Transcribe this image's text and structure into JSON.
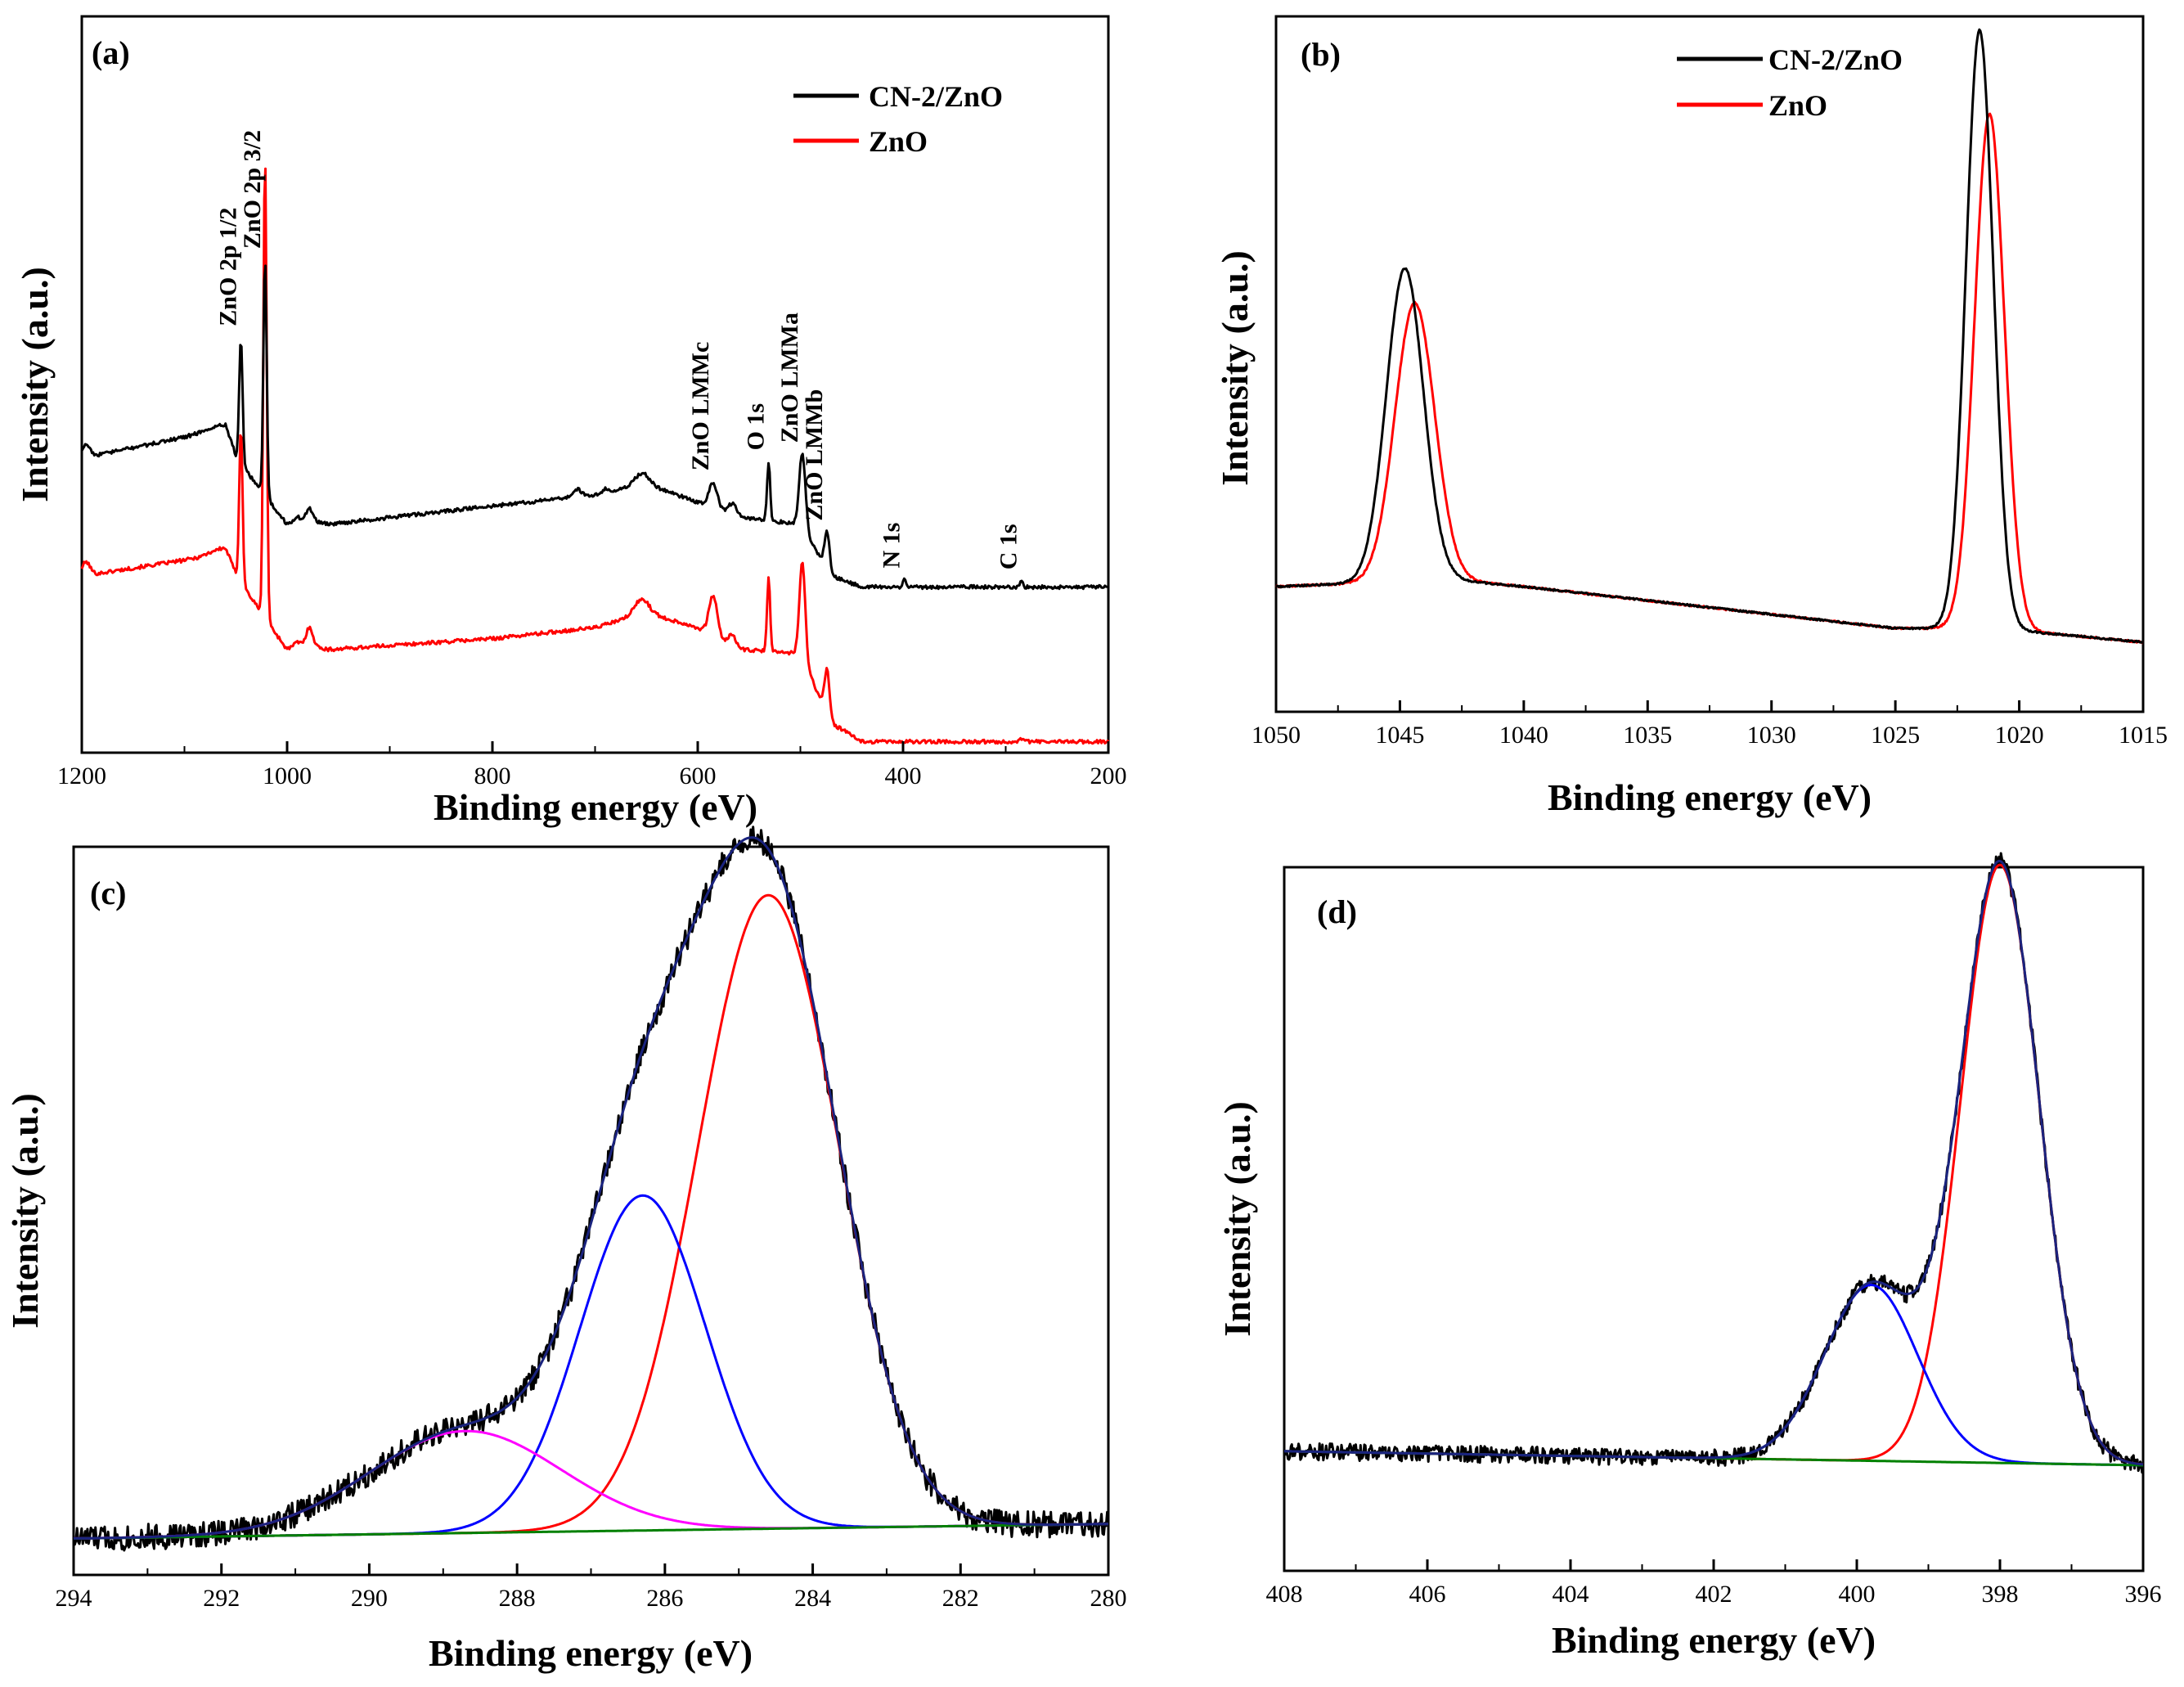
{
  "chart_data": [
    {
      "id": "a",
      "type": "line",
      "panel_label": "(a)",
      "xlabel": "Binding energy (eV)",
      "ylabel": "Intensity (a.u.)",
      "xlim": [
        1200,
        200
      ],
      "ylim": [
        0,
        100
      ],
      "xticks": [
        1200,
        1000,
        800,
        600,
        400,
        200
      ],
      "legend": [
        "CN-2/ZnO",
        "ZnO"
      ],
      "series": [
        {
          "name": "CN-2/ZnO",
          "color": "#000000",
          "baseline": [
            [
              1200,
              40
            ],
            [
              1060,
              44
            ],
            [
              1050,
              40
            ],
            [
              1000,
              31
            ],
            [
              990,
              32
            ],
            [
              960,
              31
            ],
            [
              800,
              33.5
            ],
            [
              700,
              35
            ],
            [
              650,
              36.5
            ],
            [
              600,
              34
            ],
            [
              560,
              32
            ],
            [
              500,
              31
            ],
            [
              470,
              24
            ],
            [
              440,
              22.5
            ],
            [
              200,
              22.5
            ]
          ],
          "peaks": [
            [
              1196,
              1.8,
              4
            ],
            [
              1064,
              0.6,
              15
            ],
            [
              1045,
              17,
              1.6
            ],
            [
              1021.5,
              32,
              1.6
            ],
            [
              978,
              1.5,
              3
            ],
            [
              718,
              1,
              5
            ],
            [
              690,
              0.6,
              3
            ],
            [
              655,
              1.5,
              7
            ],
            [
              585,
              3.5,
              4
            ],
            [
              566,
              1.5,
              4
            ],
            [
              531,
              8,
              1.5
            ],
            [
              498,
              10,
              3
            ],
            [
              474,
              5,
              2.5
            ],
            [
              399,
              1,
              1.5
            ],
            [
              285,
              0.8,
              1.5
            ]
          ]
        },
        {
          "name": "ZnO",
          "color": "#ff0000",
          "baseline": [
            [
              1200,
              24
            ],
            [
              1060,
              27
            ],
            [
              1050,
              24
            ],
            [
              1000,
              14
            ],
            [
              990,
              15
            ],
            [
              960,
              14
            ],
            [
              800,
              15.5
            ],
            [
              700,
              17
            ],
            [
              650,
              19
            ],
            [
              600,
              17
            ],
            [
              560,
              14
            ],
            [
              500,
              13.5
            ],
            [
              470,
              4
            ],
            [
              440,
              1.5
            ],
            [
              200,
              1.5
            ]
          ],
          "peaks": [
            [
              1196,
              1.8,
              4
            ],
            [
              1064,
              0.8,
              12
            ],
            [
              1045,
              21,
              1.6
            ],
            [
              1021.5,
              63,
              1.6
            ],
            [
              978,
              2.5,
              3
            ],
            [
              655,
              2,
              7
            ],
            [
              585,
              5.5,
              4
            ],
            [
              566,
              1.5,
              4
            ],
            [
              531,
              10,
              1.5
            ],
            [
              498,
              13,
              2.8
            ],
            [
              474,
              6,
              2.5
            ],
            [
              285,
              0.5,
              1.5
            ]
          ]
        }
      ],
      "annotations": [
        {
          "text": "ZnO 2p 1/2",
          "x": 1045
        },
        {
          "text": "ZnO 2p 3/2",
          "x": 1021.5
        },
        {
          "text": "ZnO LMMc",
          "x": 585
        },
        {
          "text": "O 1s",
          "x": 531
        },
        {
          "text": "ZnO LMMa",
          "x": 498
        },
        {
          "text": "ZnO LMMb",
          "x": 474
        },
        {
          "text": "N 1s",
          "x": 399
        },
        {
          "text": "C 1s",
          "x": 285
        }
      ]
    },
    {
      "id": "b",
      "type": "line",
      "panel_label": "(b)",
      "xlabel": "Binding energy (eV)",
      "ylabel": "Intensity (a.u.)",
      "xlim": [
        1050,
        1015
      ],
      "ylim": [
        0,
        100
      ],
      "xticks": [
        1050,
        1045,
        1040,
        1035,
        1030,
        1025,
        1020,
        1015
      ],
      "legend": [
        "CN-2/ZnO",
        "ZnO"
      ],
      "series": [
        {
          "name": "CN-2/ZnO",
          "color": "#000000",
          "baseline": [
            [
              1050,
              18
            ],
            [
              1043,
              19
            ],
            [
              1040,
              18
            ],
            [
              1035,
              16
            ],
            [
              1030,
              14
            ],
            [
              1025,
              12
            ],
            [
              1021,
              12
            ],
            [
              1015,
              10
            ]
          ],
          "peaks": [
            [
              1044.8,
              45,
              0.75
            ],
            [
              1021.6,
              86,
              0.55
            ]
          ]
        },
        {
          "name": "ZnO",
          "color": "#ff0000",
          "baseline": [
            [
              1050,
              18
            ],
            [
              1043,
              19
            ],
            [
              1040,
              18
            ],
            [
              1035,
              16
            ],
            [
              1030,
              14
            ],
            [
              1025,
              12
            ],
            [
              1021,
              12
            ],
            [
              1015,
              10
            ]
          ],
          "peaks": [
            [
              1044.4,
              40,
              0.8
            ],
            [
              1021.2,
              74,
              0.6
            ]
          ]
        }
      ]
    },
    {
      "id": "c",
      "type": "line",
      "panel_label": "(c)",
      "xlabel": "Binding energy (eV)",
      "ylabel": "Intensity (a.u.)",
      "xlim": [
        294,
        280
      ],
      "ylim": [
        0,
        100
      ],
      "xticks": [
        294,
        292,
        290,
        288,
        286,
        284,
        282,
        280
      ],
      "series": [
        {
          "name": "raw",
          "color": "#000000",
          "noise": 1.8
        },
        {
          "name": "envelope",
          "color": "#1a237e"
        },
        {
          "name": "component 284.6",
          "color": "#ff0000",
          "peak": [
            284.6,
            87,
            0.95
          ]
        },
        {
          "name": "component 286.3",
          "color": "#0000ff",
          "peak": [
            286.3,
            46,
            0.85
          ]
        },
        {
          "name": "component 288.7",
          "color": "#ff00ff",
          "peak": [
            288.7,
            14,
            1.3
          ]
        },
        {
          "name": "background",
          "color": "#008000",
          "line": [
            [
              294,
              5
            ],
            [
              280,
              7
            ]
          ]
        }
      ]
    },
    {
      "id": "d",
      "type": "line",
      "panel_label": "(d)",
      "xlabel": "Binding energy (eV)",
      "ylabel": "Intensity (a.u.)",
      "xlim": [
        408,
        396
      ],
      "ylim": [
        0,
        100
      ],
      "xticks": [
        408,
        406,
        404,
        402,
        400,
        398,
        396
      ],
      "series": [
        {
          "name": "raw",
          "color": "#000000",
          "noise": 1.2
        },
        {
          "name": "envelope",
          "color": "#1a237e"
        },
        {
          "name": "component 398.0",
          "color": "#ff0000",
          "peak": [
            398.0,
            85,
            0.55
          ]
        },
        {
          "name": "component 399.8",
          "color": "#0000ff",
          "peak": [
            399.8,
            25,
            0.65
          ]
        },
        {
          "name": "background",
          "color": "#008000",
          "line": [
            [
              408,
              17
            ],
            [
              396,
              15
            ]
          ]
        }
      ]
    }
  ]
}
